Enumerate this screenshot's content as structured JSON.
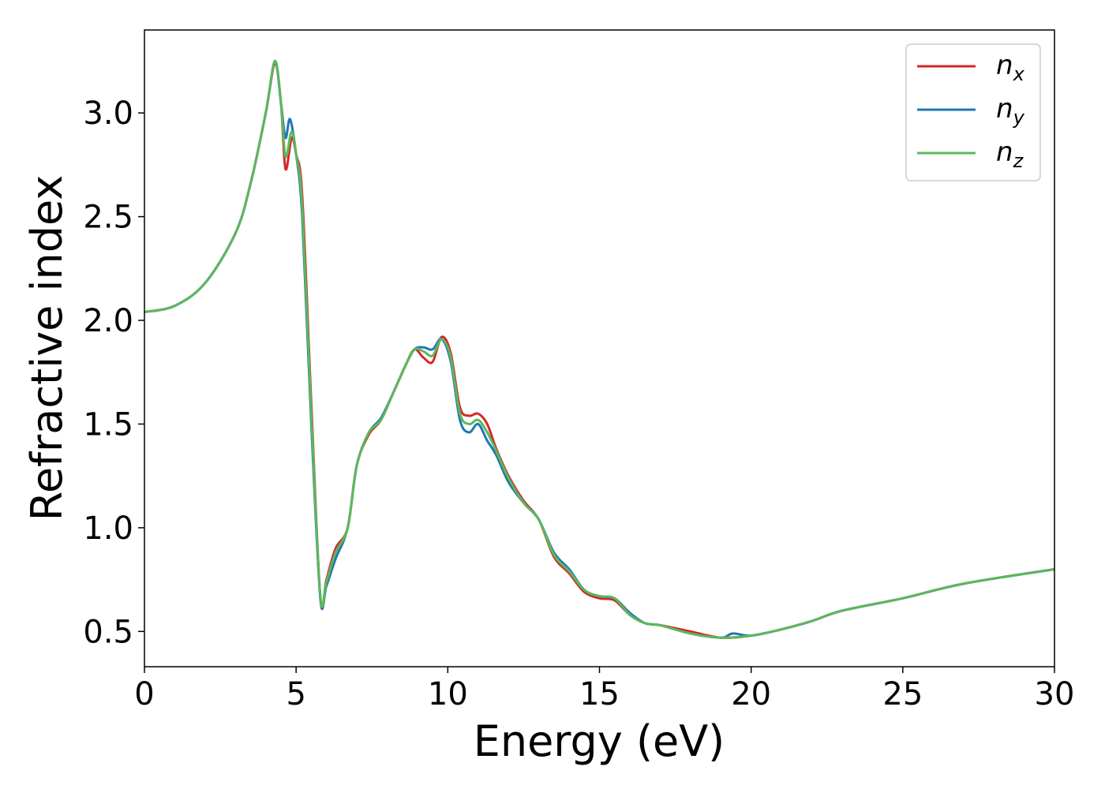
{
  "chart_data": {
    "type": "line",
    "title": "",
    "xlabel": "Energy (eV)",
    "ylabel": "Refractive index",
    "xlim": [
      0,
      30
    ],
    "ylim": [
      0.33,
      3.4
    ],
    "xticks": [
      0,
      5,
      10,
      15,
      20,
      25,
      30
    ],
    "yticks": [
      0.5,
      1.0,
      1.5,
      2.0,
      2.5,
      3.0
    ],
    "xtick_labels": [
      "0",
      "5",
      "10",
      "15",
      "20",
      "25",
      "30"
    ],
    "ytick_labels": [
      "0.5",
      "1.0",
      "1.5",
      "2.0",
      "2.5",
      "3.0"
    ],
    "grid": false,
    "legend_position": "top-right",
    "series": [
      {
        "name": "n_x",
        "label_main": "n",
        "label_sub": "x",
        "color": "#d62728",
        "x": [
          0,
          1,
          2,
          3,
          3.5,
          4,
          4.3,
          4.5,
          4.65,
          4.85,
          5.0,
          5.2,
          5.5,
          5.8,
          6.0,
          6.3,
          6.7,
          7.0,
          7.4,
          7.8,
          8.2,
          8.6,
          8.9,
          9.2,
          9.5,
          9.8,
          10.1,
          10.4,
          10.7,
          11.0,
          11.3,
          11.6,
          12.0,
          12.5,
          13.0,
          13.5,
          14.0,
          14.5,
          15.0,
          15.5,
          16.0,
          16.5,
          17.0,
          18.0,
          19.0,
          20.0,
          21.0,
          22.0,
          23.0,
          25.0,
          27.0,
          30.0
        ],
        "y": [
          2.04,
          2.07,
          2.18,
          2.42,
          2.66,
          3.0,
          3.24,
          3.05,
          2.73,
          2.88,
          2.8,
          2.6,
          1.6,
          0.66,
          0.75,
          0.9,
          1.0,
          1.3,
          1.45,
          1.52,
          1.65,
          1.78,
          1.86,
          1.82,
          1.8,
          1.92,
          1.84,
          1.58,
          1.54,
          1.55,
          1.5,
          1.38,
          1.25,
          1.13,
          1.04,
          0.86,
          0.78,
          0.69,
          0.66,
          0.65,
          0.58,
          0.54,
          0.53,
          0.5,
          0.47,
          0.48,
          0.51,
          0.55,
          0.6,
          0.66,
          0.73,
          0.8
        ]
      },
      {
        "name": "n_y",
        "label_main": "n",
        "label_sub": "y",
        "color": "#1f77b4",
        "x": [
          0,
          1,
          2,
          3,
          3.5,
          4,
          4.3,
          4.5,
          4.65,
          4.8,
          5.0,
          5.2,
          5.5,
          5.8,
          6.0,
          6.3,
          6.7,
          7.0,
          7.4,
          7.8,
          8.2,
          8.6,
          8.9,
          9.2,
          9.5,
          9.8,
          10.1,
          10.4,
          10.7,
          11.0,
          11.3,
          11.6,
          12.0,
          12.5,
          13.0,
          13.5,
          14.0,
          14.5,
          15.0,
          15.5,
          16.0,
          16.5,
          17.0,
          18.0,
          19.0,
          19.4,
          20.0,
          21.0,
          22.0,
          23.0,
          25.0,
          27.0,
          30.0
        ],
        "y": [
          2.04,
          2.07,
          2.18,
          2.42,
          2.66,
          3.0,
          3.25,
          3.05,
          2.88,
          2.97,
          2.8,
          2.5,
          1.5,
          0.66,
          0.72,
          0.85,
          1.0,
          1.3,
          1.46,
          1.53,
          1.65,
          1.78,
          1.86,
          1.87,
          1.86,
          1.91,
          1.8,
          1.52,
          1.46,
          1.5,
          1.42,
          1.35,
          1.22,
          1.12,
          1.04,
          0.88,
          0.8,
          0.7,
          0.67,
          0.66,
          0.59,
          0.54,
          0.53,
          0.49,
          0.47,
          0.49,
          0.48,
          0.51,
          0.55,
          0.6,
          0.66,
          0.73,
          0.8
        ]
      },
      {
        "name": "n_z",
        "label_main": "n",
        "label_sub": "z",
        "color": "#5cb85c",
        "x": [
          0,
          1,
          2,
          3,
          3.5,
          4,
          4.3,
          4.5,
          4.65,
          4.85,
          5.0,
          5.2,
          5.5,
          5.8,
          6.0,
          6.3,
          6.7,
          7.0,
          7.4,
          7.8,
          8.2,
          8.6,
          8.9,
          9.2,
          9.5,
          9.8,
          10.1,
          10.4,
          10.7,
          11.0,
          11.3,
          11.6,
          12.0,
          12.5,
          13.0,
          13.5,
          14.0,
          14.5,
          15.0,
          15.5,
          16.0,
          16.5,
          17.0,
          18.0,
          19.0,
          20.0,
          21.0,
          22.0,
          23.0,
          25.0,
          27.0,
          30.0
        ],
        "y": [
          2.04,
          2.07,
          2.18,
          2.42,
          2.66,
          3.0,
          3.25,
          3.05,
          2.79,
          2.91,
          2.8,
          2.55,
          1.55,
          0.67,
          0.74,
          0.88,
          1.0,
          1.3,
          1.46,
          1.52,
          1.65,
          1.78,
          1.86,
          1.85,
          1.83,
          1.91,
          1.82,
          1.55,
          1.5,
          1.52,
          1.46,
          1.37,
          1.24,
          1.12,
          1.04,
          0.87,
          0.79,
          0.7,
          0.67,
          0.66,
          0.58,
          0.54,
          0.53,
          0.49,
          0.47,
          0.48,
          0.51,
          0.55,
          0.6,
          0.66,
          0.73,
          0.8
        ]
      }
    ]
  }
}
